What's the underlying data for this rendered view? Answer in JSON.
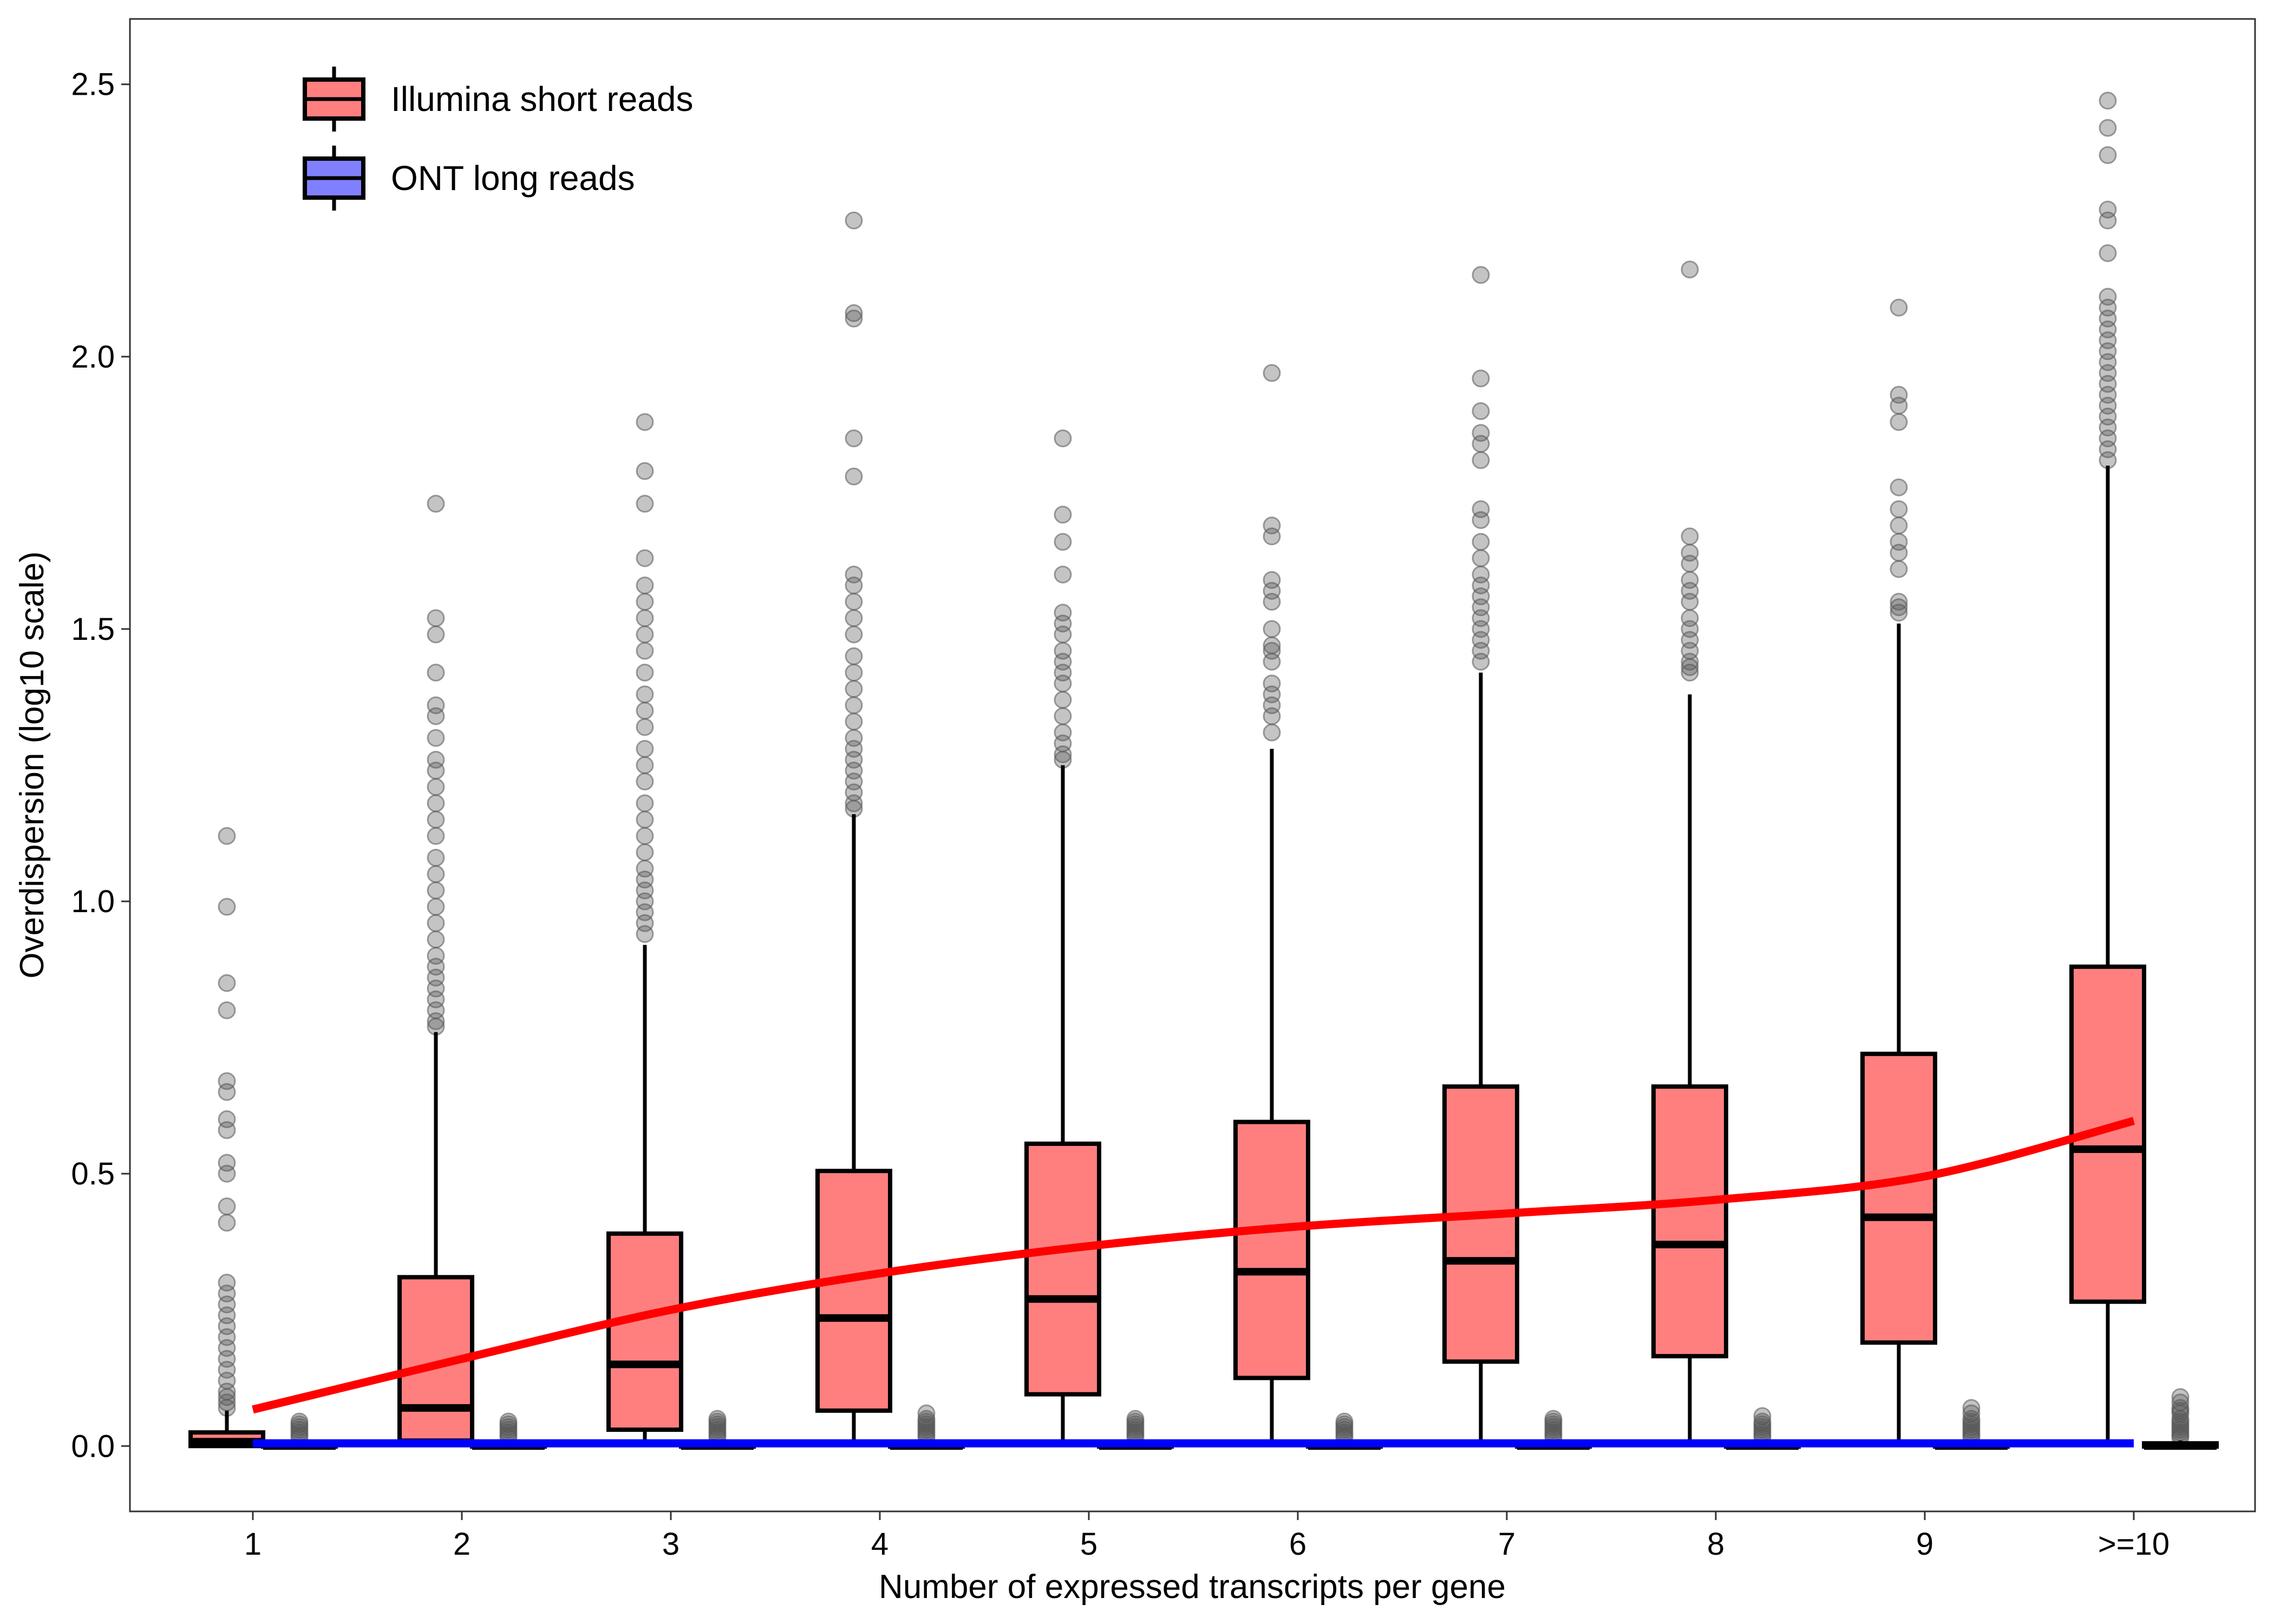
{
  "chart_data": {
    "type": "box",
    "xlabel": "Number of expressed transcripts per gene",
    "ylabel": "Overdispersion (log10 scale)",
    "ylim": [
      -0.12,
      2.62
    ],
    "yticks": [
      0.0,
      0.5,
      1.0,
      1.5,
      2.0,
      2.5
    ],
    "ytick_labels": [
      "0.0",
      "0.5",
      "1.0",
      "1.5",
      "2.0",
      "2.5"
    ],
    "categories": [
      "1",
      "2",
      "3",
      "4",
      "5",
      "6",
      "7",
      "8",
      "9",
      ">=10"
    ],
    "grid": false,
    "legend_position": "top-left",
    "colors": {
      "illumina_fill": "#FF7F7F",
      "ont_fill": "#8080FF",
      "illumina_trend": "#FF0000",
      "ont_trend": "#0000FF",
      "outlier": "#555555",
      "box_stroke": "#000000"
    },
    "series": [
      {
        "name": "Illumina short reads",
        "boxes": [
          {
            "q1": 0.0,
            "median": 0.008,
            "q3": 0.025,
            "whisker_low": 0.0,
            "whisker_high": 0.065,
            "outliers": [
              1.12,
              0.99,
              0.85,
              0.8,
              0.67,
              0.65,
              0.6,
              0.58,
              0.52,
              0.5,
              0.44,
              0.41,
              0.3,
              0.28,
              0.26,
              0.24,
              0.22,
              0.2,
              0.18,
              0.16,
              0.14,
              0.12,
              0.1,
              0.09,
              0.08,
              0.07
            ]
          },
          {
            "q1": 0.01,
            "median": 0.07,
            "q3": 0.31,
            "whisker_low": 0.0,
            "whisker_high": 0.76,
            "outliers": [
              1.73,
              1.52,
              1.49,
              1.42,
              1.36,
              1.34,
              1.3,
              1.26,
              1.24,
              1.21,
              1.18,
              1.15,
              1.12,
              1.08,
              1.05,
              1.02,
              0.99,
              0.96,
              0.93,
              0.9,
              0.88,
              0.86,
              0.84,
              0.82,
              0.8,
              0.78,
              0.77
            ]
          },
          {
            "q1": 0.03,
            "median": 0.15,
            "q3": 0.39,
            "whisker_low": 0.0,
            "whisker_high": 0.92,
            "outliers": [
              1.88,
              1.79,
              1.73,
              1.63,
              1.58,
              1.55,
              1.52,
              1.49,
              1.46,
              1.42,
              1.38,
              1.35,
              1.32,
              1.28,
              1.25,
              1.22,
              1.18,
              1.15,
              1.12,
              1.09,
              1.06,
              1.04,
              1.02,
              1.0,
              0.98,
              0.96,
              0.94
            ]
          },
          {
            "q1": 0.065,
            "median": 0.235,
            "q3": 0.505,
            "whisker_low": 0.0,
            "whisker_high": 1.16,
            "outliers": [
              2.25,
              2.08,
              2.07,
              1.85,
              1.78,
              1.6,
              1.58,
              1.55,
              1.52,
              1.49,
              1.45,
              1.42,
              1.39,
              1.36,
              1.33,
              1.3,
              1.28,
              1.26,
              1.24,
              1.22,
              1.2,
              1.18,
              1.17
            ]
          },
          {
            "q1": 0.095,
            "median": 0.27,
            "q3": 0.555,
            "whisker_low": 0.0,
            "whisker_high": 1.25,
            "outliers": [
              1.85,
              1.71,
              1.66,
              1.6,
              1.53,
              1.51,
              1.49,
              1.46,
              1.44,
              1.42,
              1.4,
              1.37,
              1.34,
              1.31,
              1.29,
              1.27,
              1.26
            ]
          },
          {
            "q1": 0.125,
            "median": 0.32,
            "q3": 0.595,
            "whisker_low": 0.0,
            "whisker_high": 1.28,
            "outliers": [
              1.97,
              1.69,
              1.67,
              1.59,
              1.57,
              1.55,
              1.5,
              1.47,
              1.46,
              1.44,
              1.4,
              1.38,
              1.36,
              1.34,
              1.31
            ]
          },
          {
            "q1": 0.155,
            "median": 0.34,
            "q3": 0.66,
            "whisker_low": 0.0,
            "whisker_high": 1.42,
            "outliers": [
              2.15,
              1.96,
              1.9,
              1.86,
              1.84,
              1.81,
              1.72,
              1.7,
              1.66,
              1.63,
              1.6,
              1.58,
              1.56,
              1.54,
              1.52,
              1.5,
              1.48,
              1.46,
              1.44
            ]
          },
          {
            "q1": 0.165,
            "median": 0.37,
            "q3": 0.66,
            "whisker_low": 0.0,
            "whisker_high": 1.38,
            "outliers": [
              2.16,
              1.67,
              1.64,
              1.62,
              1.59,
              1.57,
              1.55,
              1.52,
              1.5,
              1.48,
              1.46,
              1.44,
              1.43,
              1.42
            ]
          },
          {
            "q1": 0.19,
            "median": 0.42,
            "q3": 0.72,
            "whisker_low": 0.0,
            "whisker_high": 1.51,
            "outliers": [
              2.09,
              1.93,
              1.91,
              1.88,
              1.76,
              1.72,
              1.69,
              1.66,
              1.64,
              1.61,
              1.55,
              1.54,
              1.53
            ]
          },
          {
            "q1": 0.265,
            "median": 0.545,
            "q3": 0.88,
            "whisker_low": 0.0,
            "whisker_high": 1.8,
            "outliers": [
              2.47,
              2.42,
              2.37,
              2.27,
              2.25,
              2.19,
              2.11,
              2.09,
              2.07,
              2.05,
              2.03,
              2.01,
              1.99,
              1.97,
              1.95,
              1.93,
              1.91,
              1.89,
              1.87,
              1.85,
              1.83,
              1.81
            ]
          }
        ],
        "trend": [
          0.067,
          0.16,
          0.25,
          0.317,
          0.367,
          0.403,
          0.427,
          0.452,
          0.495,
          0.597
        ]
      },
      {
        "name": "ONT long reads",
        "boxes": [
          {
            "q1": 0.0,
            "median": 0.0,
            "q3": 0.005,
            "whisker_low": 0.0,
            "whisker_high": 0.01,
            "outliers": [
              0.045,
              0.04,
              0.035,
              0.03,
              0.025,
              0.02,
              0.015
            ]
          },
          {
            "q1": 0.0,
            "median": 0.0,
            "q3": 0.005,
            "whisker_low": 0.0,
            "whisker_high": 0.01,
            "outliers": [
              0.045,
              0.04,
              0.035,
              0.03,
              0.025,
              0.02,
              0.015
            ]
          },
          {
            "q1": 0.0,
            "median": 0.0,
            "q3": 0.005,
            "whisker_low": 0.0,
            "whisker_high": 0.01,
            "outliers": [
              0.05,
              0.045,
              0.04,
              0.035,
              0.03,
              0.025,
              0.02,
              0.015
            ]
          },
          {
            "q1": 0.0,
            "median": 0.0,
            "q3": 0.005,
            "whisker_low": 0.0,
            "whisker_high": 0.01,
            "outliers": [
              0.06,
              0.05,
              0.045,
              0.04,
              0.035,
              0.03,
              0.025,
              0.02,
              0.015
            ]
          },
          {
            "q1": 0.0,
            "median": 0.0,
            "q3": 0.005,
            "whisker_low": 0.0,
            "whisker_high": 0.01,
            "outliers": [
              0.05,
              0.045,
              0.04,
              0.035,
              0.03,
              0.025,
              0.02,
              0.015
            ]
          },
          {
            "q1": 0.0,
            "median": 0.0,
            "q3": 0.005,
            "whisker_low": 0.0,
            "whisker_high": 0.01,
            "outliers": [
              0.045,
              0.04,
              0.035,
              0.03,
              0.025,
              0.02,
              0.015
            ]
          },
          {
            "q1": 0.0,
            "median": 0.0,
            "q3": 0.005,
            "whisker_low": 0.0,
            "whisker_high": 0.01,
            "outliers": [
              0.05,
              0.045,
              0.04,
              0.035,
              0.03,
              0.025,
              0.02,
              0.015
            ]
          },
          {
            "q1": 0.0,
            "median": 0.0,
            "q3": 0.005,
            "whisker_low": 0.0,
            "whisker_high": 0.01,
            "outliers": [
              0.055,
              0.045,
              0.04,
              0.035,
              0.03,
              0.025,
              0.02,
              0.015
            ]
          },
          {
            "q1": 0.0,
            "median": 0.0,
            "q3": 0.005,
            "whisker_low": 0.0,
            "whisker_high": 0.01,
            "outliers": [
              0.07,
              0.06,
              0.05,
              0.045,
              0.04,
              0.035,
              0.03,
              0.025,
              0.02,
              0.015
            ]
          },
          {
            "q1": 0.0,
            "median": 0.0,
            "q3": 0.005,
            "whisker_low": 0.0,
            "whisker_high": 0.01,
            "outliers": [
              0.09,
              0.08,
              0.07,
              0.065,
              0.06,
              0.05,
              0.045,
              0.04,
              0.035,
              0.03,
              0.025,
              0.02,
              0.015
            ]
          }
        ],
        "trend": [
          0.005,
          0.005,
          0.005,
          0.005,
          0.005,
          0.005,
          0.005,
          0.005,
          0.005,
          0.005
        ]
      }
    ]
  }
}
